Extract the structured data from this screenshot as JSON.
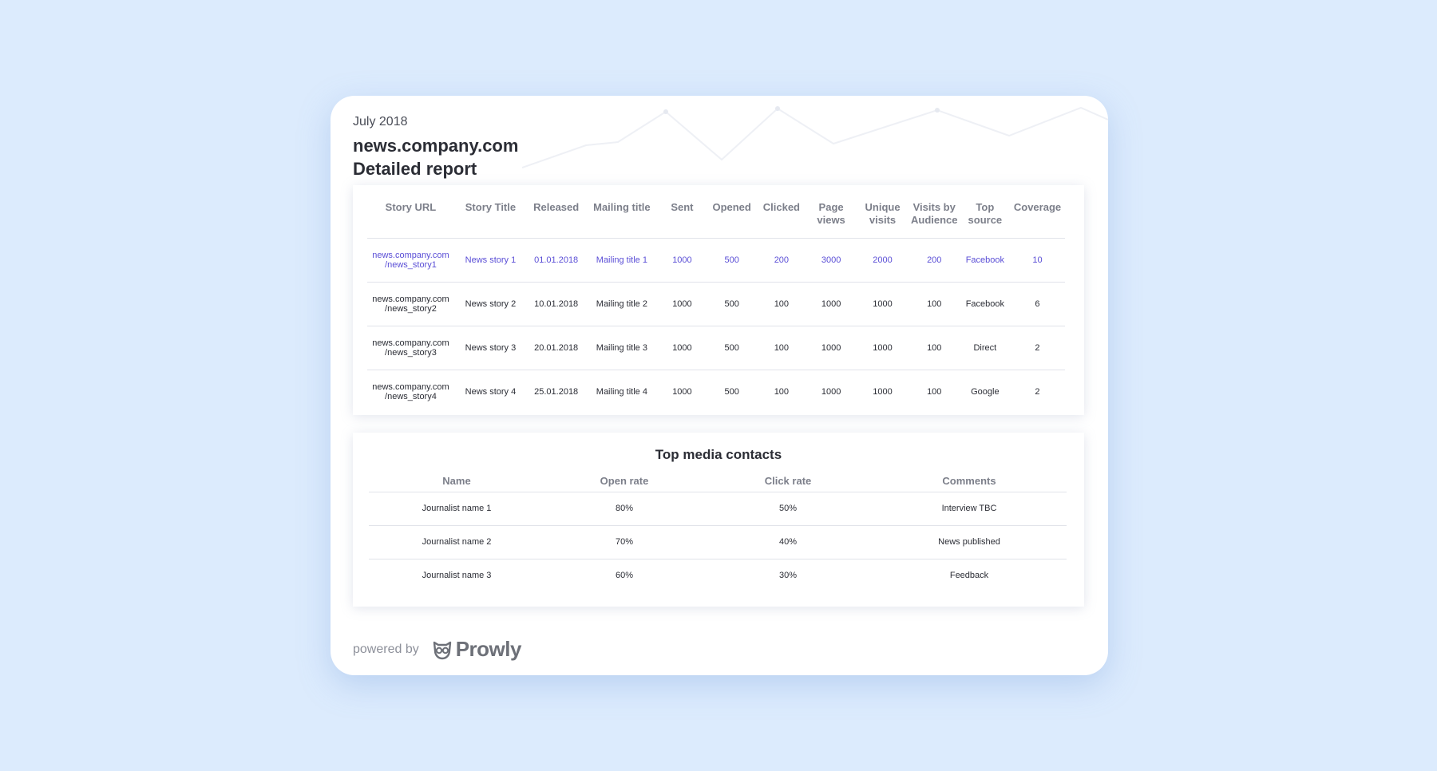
{
  "header": {
    "month": "July 2018",
    "site": "news.company.com",
    "title": "Detailed report"
  },
  "stories": {
    "columns": [
      "Story URL",
      "Story Title",
      "Released",
      "Mailing title",
      "Sent",
      "Opened",
      "Clicked",
      "Page views",
      "Unique visits",
      "Visits by Audience",
      "Top source",
      "Coverage"
    ],
    "rows": [
      {
        "url": "news.company.com /news_story1",
        "title": "News story 1",
        "released": "01.01.2018",
        "mailing": "Mailing title 1",
        "sent": "1000",
        "opened": "500",
        "clicked": "200",
        "page_views": "3000",
        "unique": "2000",
        "audience": "200",
        "source": "Facebook",
        "coverage": "10",
        "highlighted": true
      },
      {
        "url": "news.company.com /news_story2",
        "title": "News story 2",
        "released": "10.01.2018",
        "mailing": "Mailing title 2",
        "sent": "1000",
        "opened": "500",
        "clicked": "100",
        "page_views": "1000",
        "unique": "1000",
        "audience": "100",
        "source": "Facebook",
        "coverage": "6",
        "highlighted": false
      },
      {
        "url": "news.company.com /news_story3",
        "title": "News story 3",
        "released": "20.01.2018",
        "mailing": "Mailing title 3",
        "sent": "1000",
        "opened": "500",
        "clicked": "100",
        "page_views": "1000",
        "unique": "1000",
        "audience": "100",
        "source": "Direct",
        "coverage": "2",
        "highlighted": false
      },
      {
        "url": "news.company.com /news_story4",
        "title": "News story 4",
        "released": "25.01.2018",
        "mailing": "Mailing title 4",
        "sent": "1000",
        "opened": "500",
        "clicked": "100",
        "page_views": "1000",
        "unique": "1000",
        "audience": "100",
        "source": "Google",
        "coverage": "2",
        "highlighted": false
      }
    ]
  },
  "contacts": {
    "title": "Top media contacts",
    "columns": [
      "Name",
      "Open rate",
      "Click rate",
      "Comments"
    ],
    "rows": [
      {
        "name": "Journalist name 1",
        "open": "80%",
        "click": "50%",
        "comment": "Interview TBC"
      },
      {
        "name": "Journalist name 2",
        "open": "70%",
        "click": "40%",
        "comment": "News published"
      },
      {
        "name": "Journalist name 3",
        "open": "60%",
        "click": "30%",
        "comment": "Feedback"
      }
    ]
  },
  "footer": {
    "powered_by": "powered by",
    "brand": "Prowly",
    "logo_icon": "owl-logo-icon"
  },
  "colors": {
    "background": "#dcebfd",
    "highlight": "#5a4ed6",
    "text": "#2b2d35",
    "muted": "#7c7f8a"
  }
}
